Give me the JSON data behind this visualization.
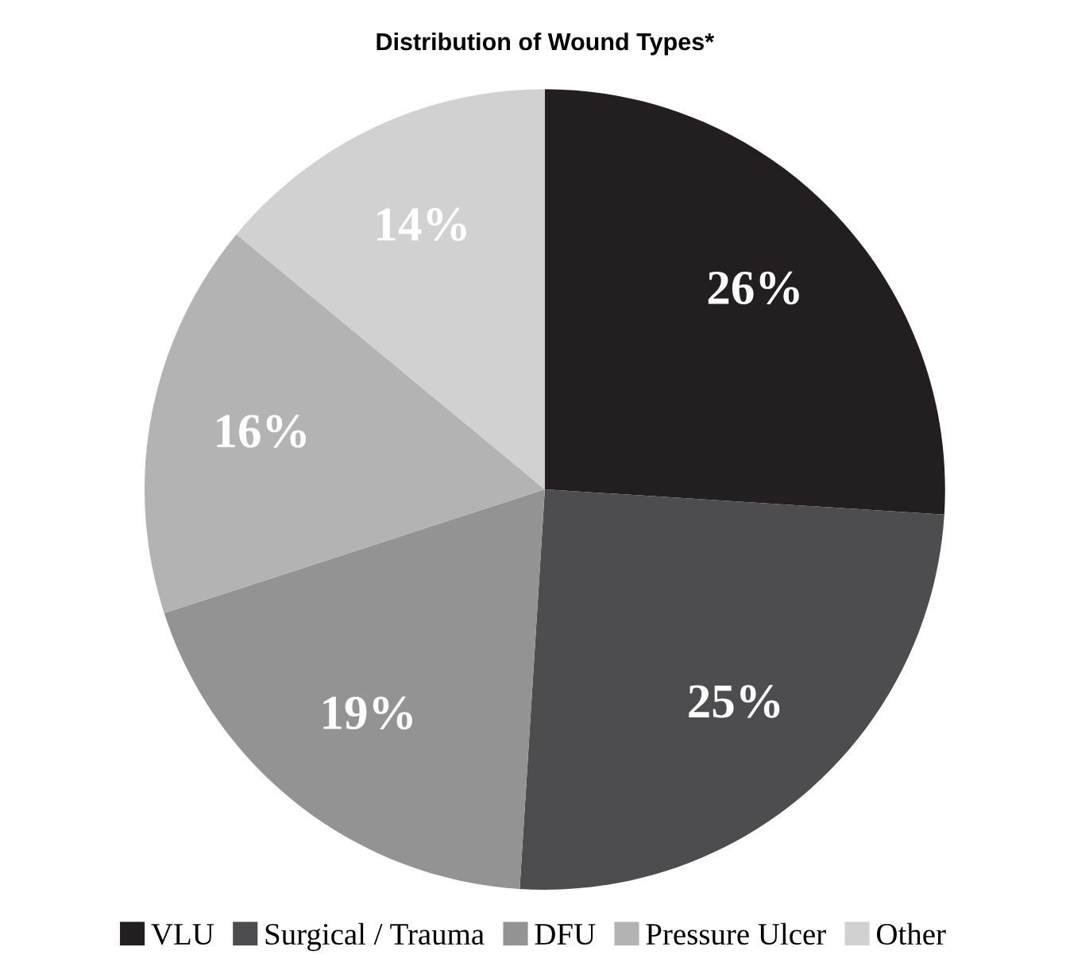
{
  "chart_data": {
    "type": "pie",
    "title": "Distribution of Wound Types*",
    "categories": [
      "VLU",
      "Surgical / Trauma",
      "DFU",
      "Pressure Ulcer",
      "Other"
    ],
    "values": [
      26,
      25,
      19,
      16,
      14
    ],
    "colors": [
      "#231f20",
      "#4d4d4f",
      "#939393",
      "#b3b3b3",
      "#d1d1d1"
    ],
    "value_labels": [
      "26%",
      "25%",
      "19%",
      "16%",
      "14%"
    ],
    "legend": "bottom"
  }
}
